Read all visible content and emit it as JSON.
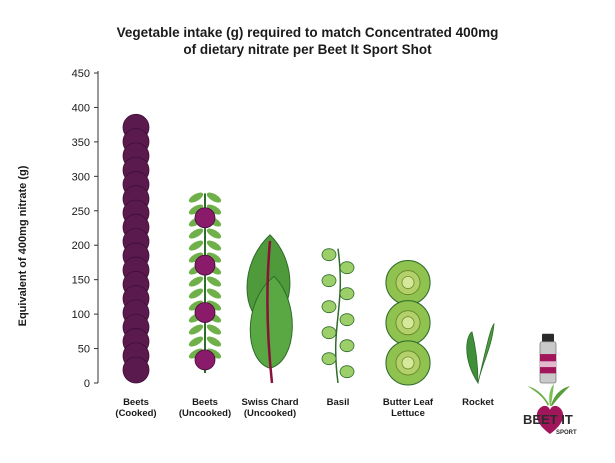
{
  "chart_data": {
    "type": "bar",
    "title_line1": "Vegetable intake (g) required to match Concentrated 400mg",
    "title_line2": "of dietary nitrate per Beet It Sport Shot",
    "ylabel": "Equivalent of 400mg nitrate (g)",
    "ylim": [
      0,
      450
    ],
    "yticks": [
      0,
      50,
      100,
      150,
      200,
      250,
      300,
      350,
      400,
      450
    ],
    "categories": [
      [
        "Beets",
        "(Cooked)"
      ],
      [
        "Beets",
        "(Uncooked)"
      ],
      [
        "Swiss Chard",
        "(Uncooked)"
      ],
      [
        "Basil",
        ""
      ],
      [
        "Butter Leaf",
        "Lettuce"
      ],
      [
        "Rocket",
        ""
      ],
      [
        "",
        ""
      ]
    ],
    "values": [
      390,
      275,
      215,
      195,
      175,
      80,
      70
    ],
    "series_colors": {
      "beet": "#5b1a4e",
      "beet_dark": "#3f0e36",
      "leaf": "#6fb04a",
      "leaf_dark": "#2f6b2a",
      "stem": "#8a1238",
      "lettuce": "#b4d06a"
    },
    "grid": false
  },
  "logo": {
    "brand": "BEET IT",
    "sub": "SPORT"
  }
}
